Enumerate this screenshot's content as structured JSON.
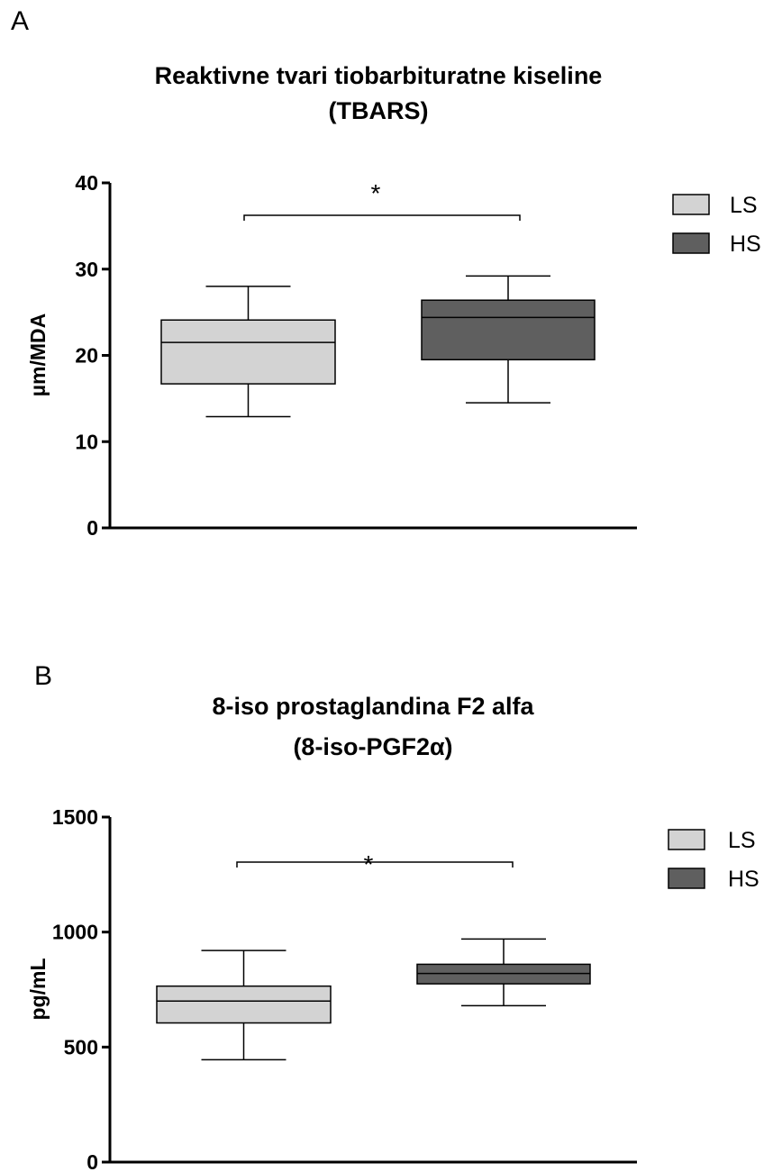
{
  "chart_data": [
    {
      "type": "box",
      "panel": "A",
      "title_line1": "Reaktivne tvari tiobarbituratne kiseline",
      "title_line2": "(TBARS)",
      "ylabel": "µm/MDA",
      "ylim": [
        0,
        40
      ],
      "yticks": [
        0,
        10,
        20,
        30,
        40
      ],
      "significance": "*",
      "legend_placement": "top-right",
      "series": [
        {
          "name": "LS",
          "color": "#d3d3d3",
          "min": 12.9,
          "q1": 16.7,
          "median": 21.5,
          "q3": 24.1,
          "max": 28.0
        },
        {
          "name": "HS",
          "color": "#5f5f5f",
          "min": 14.5,
          "q1": 19.5,
          "median": 24.4,
          "q3": 26.4,
          "max": 29.2
        }
      ]
    },
    {
      "type": "box",
      "panel": "B",
      "title_line1": "8-iso prostaglandina F2 alfa",
      "title_line2": "(8-iso-PGF2α)",
      "ylabel": "pg/mL",
      "ylim": [
        0,
        1500
      ],
      "yticks": [
        0,
        500,
        1000,
        1500
      ],
      "significance": "*",
      "legend_placement": "top-right",
      "series": [
        {
          "name": "LS",
          "color": "#d3d3d3",
          "min": 445,
          "q1": 605,
          "median": 700,
          "q3": 765,
          "max": 920
        },
        {
          "name": "HS",
          "color": "#5f5f5f",
          "min": 680,
          "q1": 775,
          "median": 820,
          "q3": 860,
          "max": 970
        }
      ]
    }
  ]
}
